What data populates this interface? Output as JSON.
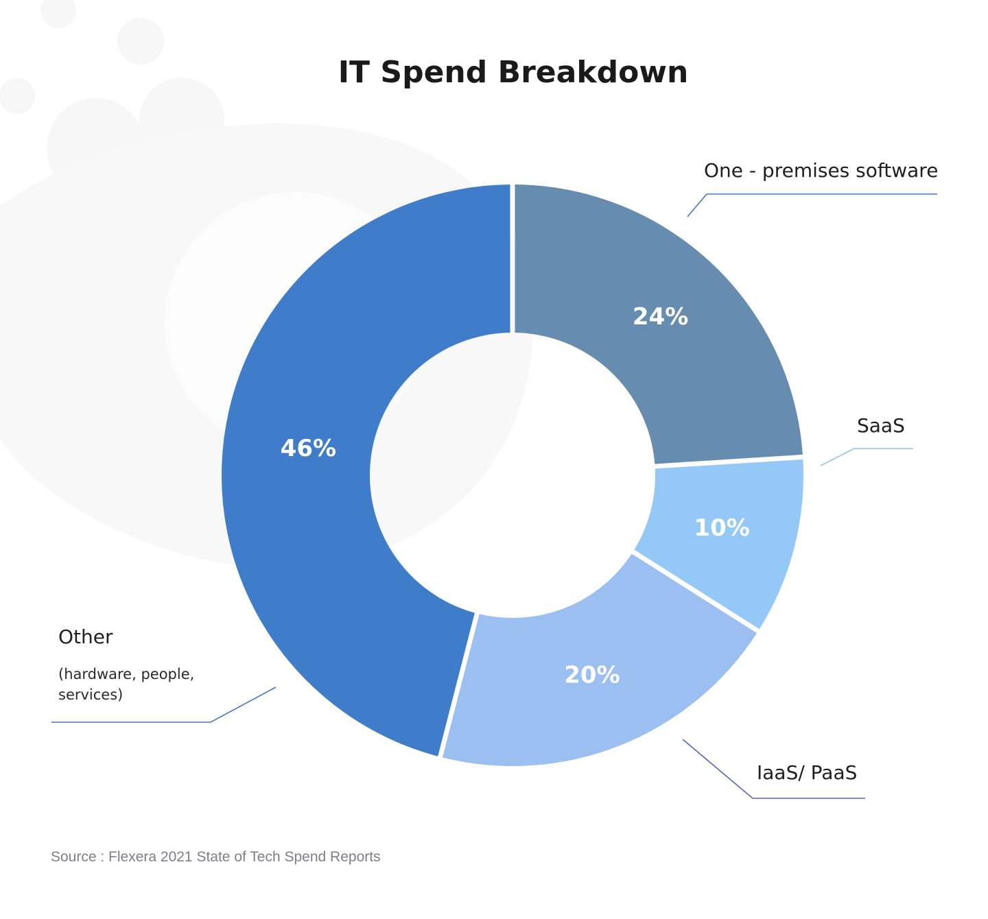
{
  "chart_data": {
    "type": "pie",
    "title": "IT Spend Breakdown",
    "categories": [
      "One - premises software",
      "SaaS",
      "IaaS/ PaaS",
      "Other"
    ],
    "values": [
      24,
      10,
      20,
      46
    ],
    "value_labels": [
      "24%",
      "10%",
      "20%",
      "46%"
    ],
    "sub_labels": [
      "",
      "",
      "",
      "(hardware, people, services)"
    ],
    "colors": [
      "#668cb0",
      "#94c9f7",
      "#9bbff0",
      "#3f7dca"
    ],
    "leader_colors": [
      "#3d78c4",
      "#8cc4ef",
      "#5560c8",
      "#3d78c4"
    ],
    "donut": true,
    "legend": "callout labels with leader lines"
  },
  "source": "Source : Flexera 2021 State of Tech Spend Reports"
}
